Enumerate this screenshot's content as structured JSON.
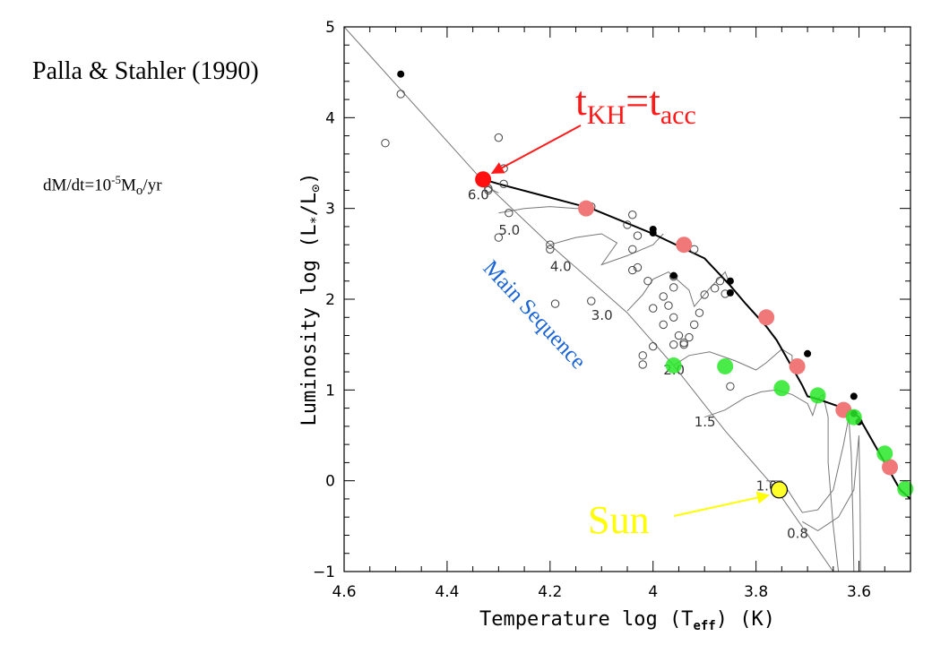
{
  "page": {
    "reference_title": "Palla & Stahler (1990)",
    "accretion_rate": {
      "prefix": "dM/dt=10",
      "exponent": "-5",
      "unit_symbol": "M",
      "unit_subscript": "o",
      "unit_suffix": "/yr"
    }
  },
  "chart_data": {
    "type": "scatter",
    "title": "",
    "xlabel": "Temperature log (T",
    "xlabel_subscript": "eff",
    "xlabel_suffix": ") (K)",
    "ylabel": "Luminosity log (L",
    "ylabel_star": "*",
    "ylabel_mid": "/L",
    "ylabel_sun_subscript": "⊙",
    "ylabel_suffix": ")",
    "xlim": [
      4.6,
      3.5
    ],
    "ylim": [
      -1,
      5
    ],
    "x_reversed": true,
    "grid": false,
    "x_ticks": [
      4.6,
      4.4,
      4.2,
      4.0,
      3.8,
      3.6
    ],
    "x_tick_labels": [
      "4.6",
      "4.4",
      "4.2",
      "4",
      "3.8",
      "3.6"
    ],
    "y_ticks": [
      -1,
      0,
      1,
      2,
      3,
      4,
      5
    ],
    "y_tick_labels": [
      "−1",
      "0",
      "1",
      "2",
      "3",
      "4",
      "5"
    ],
    "colors": {
      "birthline": "#000000",
      "tracks": "#777777",
      "red": "#f07878",
      "green": "#29e829",
      "highlight_red": "#ff0f0f",
      "sun": "#ffff2a",
      "annotation_red": "#ff1a1a",
      "annotation_blue": "#1a64d6",
      "annotation_yellow": "#ffff00"
    },
    "main_sequence": {
      "label": "Main Sequence",
      "points": [
        [
          4.6,
          5.0
        ],
        [
          4.33,
          3.3
        ],
        [
          4.2,
          2.6
        ],
        [
          4.05,
          1.85
        ],
        [
          3.96,
          1.27
        ],
        [
          3.86,
          0.55
        ],
        [
          3.76,
          -0.1
        ],
        [
          3.65,
          -1.0
        ]
      ]
    },
    "birthline": {
      "points": [
        [
          4.33,
          3.32
        ],
        [
          4.3,
          3.27
        ],
        [
          4.2,
          3.12
        ],
        [
          4.12,
          3.0
        ],
        [
          4.0,
          2.72
        ],
        [
          3.9,
          2.45
        ],
        [
          3.85,
          2.15
        ],
        [
          3.82,
          1.95
        ],
        [
          3.78,
          1.7
        ],
        [
          3.76,
          1.55
        ],
        [
          3.73,
          1.25
        ],
        [
          3.71,
          1.05
        ],
        [
          3.7,
          0.93
        ],
        [
          3.68,
          0.9
        ],
        [
          3.64,
          0.82
        ],
        [
          3.62,
          0.78
        ],
        [
          3.6,
          0.7
        ],
        [
          3.58,
          0.5
        ],
        [
          3.55,
          0.2
        ],
        [
          3.52,
          -0.1
        ],
        [
          3.5,
          -0.2
        ]
      ]
    },
    "tracks": [
      {
        "mass_label": "6.0",
        "label_at": [
          4.36,
          3.15
        ],
        "points": [
          [
            4.33,
            3.3
          ],
          [
            4.32,
            3.25
          ],
          [
            4.31,
            3.2
          ],
          [
            4.3,
            3.17
          ]
        ]
      },
      {
        "mass_label": "5.0",
        "label_at": [
          4.3,
          2.76
        ],
        "points": [
          [
            4.3,
            2.95
          ],
          [
            4.25,
            3.0
          ],
          [
            4.2,
            3.02
          ],
          [
            4.15,
            3.0
          ],
          [
            4.12,
            3.0
          ]
        ]
      },
      {
        "mass_label": "4.0",
        "label_at": [
          4.2,
          2.36
        ],
        "points": [
          [
            4.2,
            2.6
          ],
          [
            4.15,
            2.68
          ],
          [
            4.1,
            2.72
          ],
          [
            4.07,
            2.62
          ],
          [
            4.1,
            2.38
          ],
          [
            4.05,
            2.48
          ],
          [
            4.0,
            2.6
          ],
          [
            3.98,
            2.72
          ]
        ]
      },
      {
        "mass_label": "3.0",
        "label_at": [
          4.12,
          1.82
        ],
        "points": [
          [
            4.05,
            1.87
          ],
          [
            4.02,
            2.05
          ],
          [
            4.0,
            2.22
          ],
          [
            3.97,
            2.3
          ],
          [
            3.93,
            2.1
          ],
          [
            3.92,
            1.92
          ],
          [
            3.89,
            2.12
          ],
          [
            3.86,
            2.3
          ],
          [
            3.85,
            2.15
          ]
        ]
      },
      {
        "mass_label": "2.0",
        "label_at": [
          3.98,
          1.22
        ],
        "points": [
          [
            3.96,
            1.27
          ],
          [
            3.93,
            1.38
          ],
          [
            3.89,
            1.42
          ],
          [
            3.84,
            1.32
          ],
          [
            3.8,
            1.22
          ],
          [
            3.78,
            1.3
          ],
          [
            3.75,
            1.45
          ],
          [
            3.73,
            1.38
          ],
          [
            3.73,
            1.25
          ]
        ]
      },
      {
        "mass_label": "1.5",
        "label_at": [
          3.92,
          0.65
        ],
        "points": [
          [
            3.9,
            0.7
          ],
          [
            3.86,
            0.78
          ],
          [
            3.82,
            0.92
          ],
          [
            3.79,
            0.98
          ],
          [
            3.76,
            1.0
          ],
          [
            3.73,
            0.95
          ],
          [
            3.7,
            0.85
          ],
          [
            3.69,
            0.72
          ],
          [
            3.68,
            0.9
          ],
          [
            3.67,
            0.95
          ],
          [
            3.66,
            0.7
          ],
          [
            3.66,
            0.2
          ],
          [
            3.65,
            -0.5
          ],
          [
            3.64,
            -1.0
          ]
        ]
      },
      {
        "mass_label": "1.0",
        "label_at": [
          3.8,
          -0.06
        ],
        "points": [
          [
            3.78,
            0.0
          ],
          [
            3.75,
            0.0
          ],
          [
            3.71,
            -0.35
          ],
          [
            3.68,
            -0.32
          ],
          [
            3.65,
            -0.1
          ],
          [
            3.63,
            0.4
          ],
          [
            3.62,
            0.7
          ],
          [
            3.615,
            0.3
          ],
          [
            3.612,
            -0.4
          ],
          [
            3.61,
            -1.0
          ]
        ]
      },
      {
        "mass_label": "0.8",
        "label_at": [
          3.74,
          -0.58
        ],
        "points": [
          [
            3.71,
            -0.45
          ],
          [
            3.68,
            -0.55
          ],
          [
            3.64,
            -0.4
          ],
          [
            3.61,
            -0.1
          ],
          [
            3.6,
            0.5
          ],
          [
            3.598,
            -0.2
          ],
          [
            3.597,
            -1.0
          ]
        ]
      }
    ],
    "series": [
      {
        "name": "",
        "marker": "open-circle",
        "points": [
          [
            4.52,
            3.72
          ],
          [
            4.49,
            4.26
          ],
          [
            4.3,
            3.78
          ],
          [
            4.32,
            3.22
          ],
          [
            4.29,
            3.44
          ],
          [
            4.29,
            3.27
          ],
          [
            4.32,
            3.2
          ],
          [
            4.28,
            2.95
          ],
          [
            4.3,
            2.68
          ],
          [
            4.2,
            2.6
          ],
          [
            4.2,
            2.55
          ],
          [
            4.12,
            3.02
          ],
          [
            4.05,
            2.82
          ],
          [
            4.04,
            2.93
          ],
          [
            4.03,
            2.7
          ],
          [
            4.04,
            2.55
          ],
          [
            4.03,
            2.35
          ],
          [
            4.04,
            2.32
          ],
          [
            4.01,
            2.2
          ],
          [
            3.96,
            2.13
          ],
          [
            3.98,
            2.03
          ],
          [
            4.0,
            1.9
          ],
          [
            3.97,
            1.93
          ],
          [
            3.96,
            1.8
          ],
          [
            3.95,
            1.6
          ],
          [
            3.94,
            1.5
          ],
          [
            3.94,
            1.52
          ],
          [
            3.91,
            1.85
          ],
          [
            3.93,
            1.58
          ],
          [
            3.92,
            1.72
          ],
          [
            4.0,
            1.48
          ],
          [
            4.02,
            1.38
          ],
          [
            4.02,
            1.28
          ],
          [
            3.98,
            1.72
          ],
          [
            3.96,
            1.5
          ],
          [
            3.88,
            2.12
          ],
          [
            3.87,
            2.2
          ],
          [
            3.86,
            2.06
          ],
          [
            3.85,
            1.04
          ],
          [
            3.92,
            2.55
          ],
          [
            4.12,
            1.98
          ],
          [
            4.19,
            1.95
          ],
          [
            3.96,
            2.25
          ],
          [
            3.9,
            2.05
          ]
        ]
      },
      {
        "name": "",
        "marker": "filled-small-black",
        "points": [
          [
            4.49,
            4.48
          ],
          [
            4.0,
            2.77
          ],
          [
            4.0,
            2.73
          ],
          [
            3.96,
            2.26
          ],
          [
            3.85,
            2.2
          ],
          [
            3.85,
            2.07
          ],
          [
            3.7,
            1.4
          ],
          [
            3.72,
            1.25
          ],
          [
            3.61,
            0.93
          ],
          [
            3.61,
            0.74
          ],
          [
            3.6,
            0.65
          ]
        ]
      },
      {
        "name": "",
        "marker": "filled-red",
        "points": [
          [
            4.13,
            3.0
          ],
          [
            3.94,
            2.6
          ],
          [
            3.78,
            1.8
          ],
          [
            3.72,
            1.26
          ],
          [
            3.63,
            0.78
          ],
          [
            3.54,
            0.15
          ]
        ]
      },
      {
        "name": "",
        "marker": "filled-green",
        "points": [
          [
            3.96,
            1.27
          ],
          [
            3.86,
            1.26
          ],
          [
            3.75,
            1.02
          ],
          [
            3.68,
            0.94
          ],
          [
            3.61,
            0.7
          ],
          [
            3.55,
            0.3
          ],
          [
            3.51,
            -0.09
          ]
        ]
      }
    ],
    "highlight_point": [
      4.33,
      3.32
    ],
    "sun_point": [
      3.755,
      -0.1
    ],
    "annotations": [
      {
        "id": "tkh",
        "main": "t",
        "sub1": "KH",
        "eq": "=t",
        "sub2": "acc",
        "color": "#ff1a1a"
      },
      {
        "id": "sun",
        "text": "Sun",
        "color": "#ffff00"
      }
    ]
  }
}
